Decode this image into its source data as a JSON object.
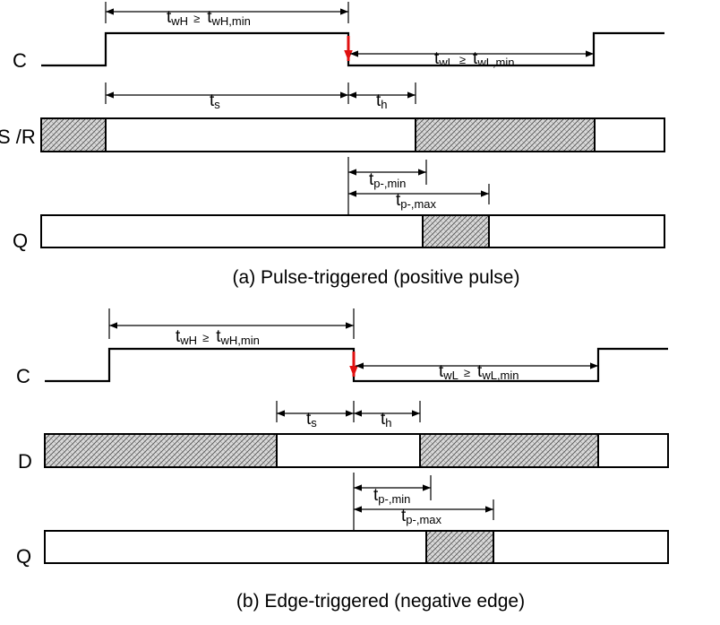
{
  "panel_a": {
    "caption": "(a) Pulse-triggered (positive pulse)",
    "signal_c": "C",
    "signal_sr": "S /R",
    "signal_q": "Q",
    "twh": {
      "main": "t",
      "sub": "wH",
      "rel": "≥",
      "ref_main": "t",
      "ref_sub": "wH,min"
    },
    "twl": {
      "main": "t",
      "sub": "wL",
      "rel": "≥",
      "ref_main": "t",
      "ref_sub": "wL,min"
    },
    "ts": {
      "main": "t",
      "sub": "s"
    },
    "th": {
      "main": "t",
      "sub": "h"
    },
    "tpmin": {
      "main": "t",
      "sub": "p-,min"
    },
    "tpmax": {
      "main": "t",
      "sub": "p-,max"
    }
  },
  "panel_b": {
    "caption": "(b) Edge-triggered (negative edge)",
    "signal_c": "C",
    "signal_d": "D",
    "signal_q": "Q",
    "twh": {
      "main": "t",
      "sub": "wH",
      "rel": "≥",
      "ref_main": "t",
      "ref_sub": "wH,min"
    },
    "twl": {
      "main": "t",
      "sub": "wL",
      "rel": "≥",
      "ref_main": "t",
      "ref_sub": "wL,min"
    },
    "ts": {
      "main": "t",
      "sub": "s"
    },
    "th": {
      "main": "t",
      "sub": "h"
    },
    "tpmin": {
      "main": "t",
      "sub": "p-,min"
    },
    "tpmax": {
      "main": "t",
      "sub": "p-,max"
    }
  },
  "colors": {
    "edge_arrow": "#e01010",
    "hatch": "#555555"
  }
}
